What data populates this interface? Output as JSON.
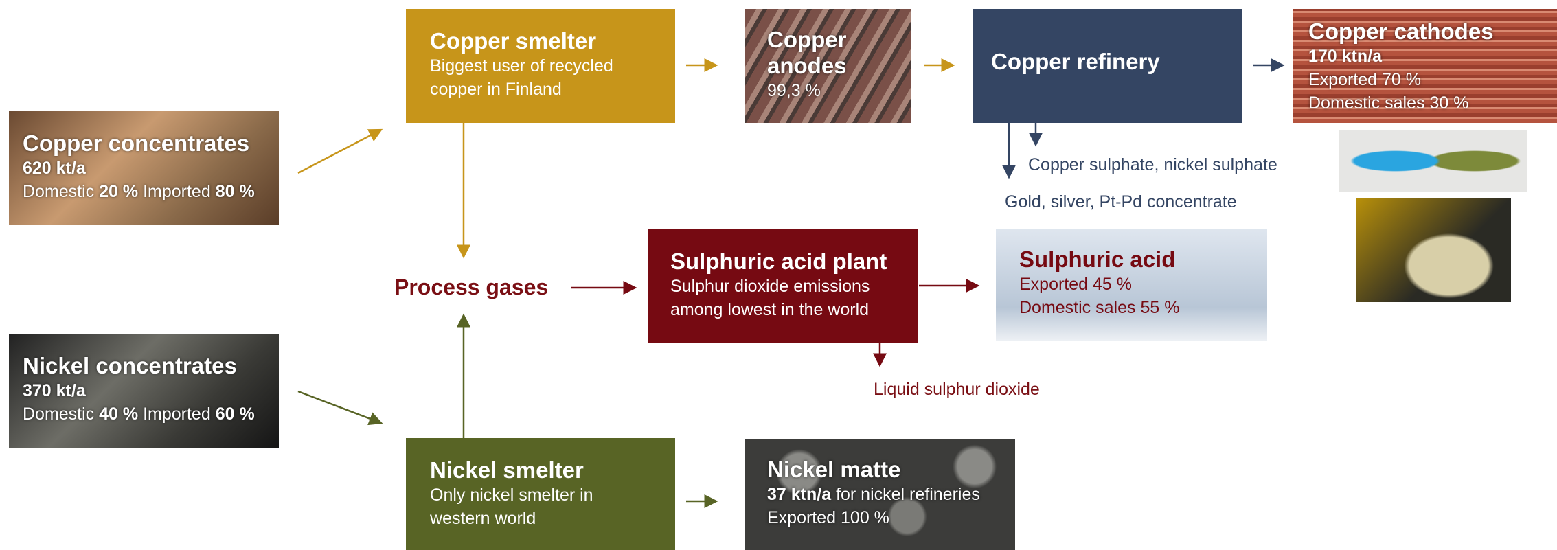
{
  "inputs": [
    {
      "title": "Copper concentrates",
      "amount": "620 kt/a",
      "domestic_label": "Domestic",
      "domestic": "20 %",
      "imported_label": "Imported",
      "imported": "80 %"
    },
    {
      "title": "Nickel concentrates",
      "amount": "370 kt/a",
      "domestic_label": "Domestic",
      "domestic": "40 %",
      "imported_label": "Imported",
      "imported": "60 %"
    }
  ],
  "copper_smelter": {
    "title": "Copper smelter",
    "lines": [
      "Biggest user of recycled",
      "copper in Finland"
    ]
  },
  "nickel_smelter": {
    "title": "Nickel smelter",
    "lines": [
      "Only nickel smelter in",
      "western world"
    ]
  },
  "process_gases": "Process gases",
  "acid_plant": {
    "title": "Sulphuric acid plant",
    "lines": [
      "Sulphur dioxide emissions",
      "among lowest in the world"
    ]
  },
  "copper_anodes": {
    "title_lines": [
      "Copper",
      "anodes"
    ],
    "share": "99,3 %"
  },
  "copper_refinery": "Copper refinery",
  "copper_cathodes": {
    "title": "Copper cathodes",
    "amount": "170 ktn/a",
    "lines": [
      "Exported 70 %",
      "Domestic sales 30 %"
    ]
  },
  "refinery_byproducts": [
    "Copper sulphate, nickel sulphate",
    "Gold, silver, Pt-Pd concentrate"
  ],
  "sulphuric_acid": {
    "title": "Sulphuric acid",
    "lines": [
      "Exported 45 %",
      "Domestic sales 55 %"
    ]
  },
  "liquid_so2": "Liquid sulphur dioxide",
  "nickel_matte": {
    "title": "Nickel matte",
    "amount": "37 ktn/a",
    "amount_note": "for nickel refineries",
    "export": "Exported 100 %"
  }
}
